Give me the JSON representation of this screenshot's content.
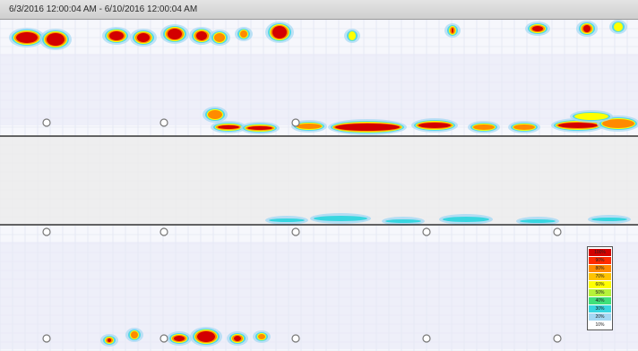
{
  "window": {
    "title": "6/3/2016 12:00:04 AM - 6/10/2016 12:00:04 AM"
  },
  "colors": {
    "background": "#f6f7fc",
    "grid": "#dde1ee",
    "band_shading": "#ececec",
    "divider": "#333333",
    "marker_stroke": "#777777"
  },
  "legend": {
    "items": [
      {
        "label": "100%",
        "color": "#d30000"
      },
      {
        "label": "90%",
        "color": "#ff2a00"
      },
      {
        "label": "80%",
        "color": "#ff8a00"
      },
      {
        "label": "70%",
        "color": "#ffc400"
      },
      {
        "label": "60%",
        "color": "#ffff00"
      },
      {
        "label": "50%",
        "color": "#b6f23a"
      },
      {
        "label": "40%",
        "color": "#3fe07a"
      },
      {
        "label": "30%",
        "color": "#38d6e0"
      },
      {
        "label": "20%",
        "color": "#a5d8f4"
      },
      {
        "label": "10%",
        "color": "#ffffff"
      }
    ]
  },
  "icons": {
    "marker": "circle-marker-icon"
  }
}
